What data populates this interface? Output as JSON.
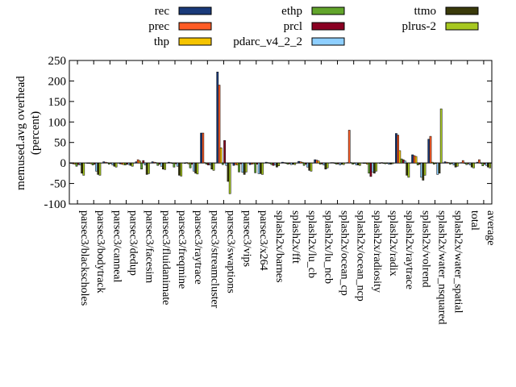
{
  "chart_data": {
    "type": "bar",
    "title": "",
    "xlabel": "",
    "ylabel": "memused.avg overhead",
    "ylabel_unit": "(percent)",
    "ylim": [
      -100,
      250
    ],
    "yticks": [
      -100,
      -50,
      0,
      50,
      100,
      150,
      200,
      250
    ],
    "legend_position": "top",
    "categories": [
      "parsec3/blackscholes",
      "parsec3/bodytrack",
      "parsec3/canneal",
      "parsec3/dedup",
      "parsec3/facesim",
      "parsec3/fluidanimate",
      "parsec3/freqmine",
      "parsec3/raytrace",
      "parsec3/streamcluster",
      "parsec3/swaptions",
      "parsec3/vips",
      "parsec3/x264",
      "splash2x/barnes",
      "splash2x/fft",
      "splash2x/lu_cb",
      "splash2x/lu_ncb",
      "splash2x/ocean_cp",
      "splash2x/ocean_ncp",
      "splash2x/radiosity",
      "splash2x/radix",
      "splash2x/raytrace",
      "splash2x/volrend",
      "splash2x/water_nsquared",
      "splash2x/water_spatial",
      "total",
      "average"
    ],
    "series": [
      {
        "name": "rec",
        "color": "#1a3a7a",
        "values": [
          -1,
          0,
          3,
          -2,
          3,
          3,
          2,
          0,
          73,
          222,
          -6,
          -4,
          2,
          2,
          4,
          8,
          1,
          1,
          0,
          0,
          72,
          20,
          58,
          3,
          1,
          2
        ]
      },
      {
        "name": "prec",
        "color": "#ff5c26",
        "values": [
          -2,
          -1,
          2,
          -3,
          8,
          2,
          1,
          1,
          73,
          190,
          -4,
          -3,
          1,
          1,
          3,
          7,
          1,
          80,
          -1,
          1,
          68,
          18,
          65,
          2,
          6,
          8
        ]
      },
      {
        "name": "thp",
        "color": "#f5c400",
        "values": [
          -3,
          -2,
          1,
          -4,
          5,
          1,
          0,
          -2,
          1,
          37,
          -5,
          -2,
          0,
          0,
          2,
          5,
          0,
          1,
          -3,
          0,
          30,
          16,
          2,
          1,
          0,
          0
        ]
      },
      {
        "name": "ethp",
        "color": "#62a52b",
        "values": [
          -8,
          -5,
          -3,
          -5,
          -15,
          -6,
          -10,
          -12,
          -3,
          -4,
          -22,
          -24,
          -4,
          -3,
          -6,
          -3,
          -3,
          -3,
          -25,
          -2,
          10,
          -5,
          -3,
          -3,
          -4,
          -7
        ]
      },
      {
        "name": "prcl",
        "color": "#8a0022",
        "values": [
          -4,
          -3,
          -1,
          -3,
          6,
          -3,
          -2,
          -3,
          -5,
          55,
          -2,
          -3,
          -6,
          -2,
          -3,
          -2,
          -2,
          0,
          -33,
          0,
          8,
          -3,
          0,
          -1,
          -2,
          -3
        ]
      },
      {
        "name": "pdarc_v4_2_2",
        "color": "#8ecfff",
        "values": [
          -5,
          -20,
          -5,
          -4,
          -5,
          -8,
          -8,
          -20,
          -5,
          -6,
          -23,
          -26,
          -5,
          -4,
          -10,
          -5,
          -5,
          -5,
          -22,
          -3,
          5,
          -35,
          -28,
          -5,
          -5,
          -6
        ]
      },
      {
        "name": "ttmo",
        "color": "#3a3a0a",
        "values": [
          -25,
          -28,
          -8,
          -6,
          -28,
          -15,
          -30,
          -25,
          -15,
          -45,
          -28,
          -26,
          -10,
          -3,
          -18,
          -15,
          -3,
          -5,
          -25,
          -3,
          -30,
          -42,
          -25,
          -10,
          -10,
          -10
        ]
      },
      {
        "name": "plrus-2",
        "color": "#a7c820",
        "values": [
          -30,
          -30,
          -10,
          -8,
          -26,
          -16,
          -32,
          -27,
          -18,
          -75,
          -22,
          -28,
          -7,
          -4,
          -20,
          -12,
          -4,
          -6,
          -20,
          -2,
          -35,
          -30,
          132,
          -8,
          -12,
          -12
        ]
      }
    ]
  }
}
